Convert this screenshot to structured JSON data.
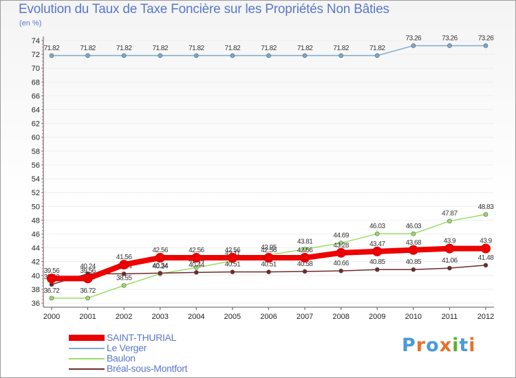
{
  "chart_data": {
    "type": "line",
    "title": "Evolution du Taux de Taxe Foncière sur les Propriétés Non Bâties",
    "ylabel": "(en %)",
    "xlabel": "",
    "x": [
      "2000",
      "2001",
      "2002",
      "2003",
      "2004",
      "2005",
      "2006",
      "2007",
      "2008",
      "2009",
      "2010",
      "2011",
      "2012"
    ],
    "ylim": [
      36,
      74
    ],
    "ytick_step": 2,
    "series": [
      {
        "name": "Le Verger",
        "color": "#7aaad0",
        "values": [
          71.82,
          71.82,
          71.82,
          71.82,
          71.82,
          71.82,
          71.82,
          71.82,
          71.82,
          71.82,
          73.26,
          73.26,
          73.26
        ],
        "labels": [
          "71.82",
          "71.82",
          "71.82",
          "71.82",
          "71.82",
          "71.82",
          "71.82",
          "71.82",
          "71.82",
          "71.82",
          "73.26",
          "73.26",
          "73.26"
        ]
      },
      {
        "name": "Baulon",
        "color": "#99dd66",
        "values": [
          36.72,
          36.72,
          38.55,
          40.24,
          41.14,
          42.11,
          42.95,
          43.81,
          44.69,
          46.03,
          46.03,
          47.87,
          48.83
        ],
        "labels": [
          "36.72",
          "36.72",
          "38.55",
          "40.24",
          "41.14",
          "42.11",
          "42.95",
          "43.81",
          "44.69",
          "46.03",
          "46.03",
          "47.87",
          "48.83"
        ]
      },
      {
        "name": "Bréal-sous-Montfort",
        "color": "#6e2a2a",
        "values": [
          38.69,
          40.24,
          40.24,
          40.34,
          40.44,
          40.51,
          40.51,
          40.58,
          40.66,
          40.85,
          40.85,
          41.06,
          41.48
        ],
        "labels": [
          "38.69",
          "40.24",
          "40.24",
          "40.34",
          "40.44",
          "40.51",
          "40.51",
          "40.58",
          "40.66",
          "40.85",
          "40.85",
          "41.06",
          "41.48"
        ]
      },
      {
        "name": "SAINT-THURIAL",
        "color": "#ee0000",
        "values": [
          39.56,
          39.56,
          41.56,
          42.56,
          42.56,
          42.56,
          42.56,
          42.56,
          43.28,
          43.47,
          43.68,
          43.9,
          43.9
        ],
        "labels": [
          "39.56",
          "39.56",
          "41.56",
          "42.56",
          "42.56",
          "42.56",
          "42.56",
          "42.56",
          "43.28",
          "43.47",
          "43.68",
          "43.9",
          "43.9"
        ]
      }
    ],
    "legend": [
      "SAINT-THURIAL",
      "Le Verger",
      "Baulon",
      "Bréal-sous-Montfort"
    ],
    "legend_position": "bottom-left"
  },
  "logo": {
    "text": "Proxiti",
    "colors": [
      "#4a9ad8",
      "#e8702a",
      "#4a9ad8",
      "#e8702a",
      "#5ab030",
      "#4a9ad8",
      "#e8702a"
    ]
  }
}
